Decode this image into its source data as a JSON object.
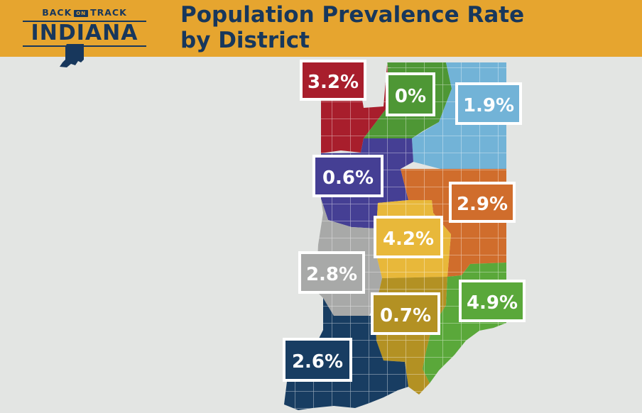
{
  "logo": {
    "word_left": "BACK",
    "word_mid": "ON",
    "word_right": "TRACK",
    "main": "INDIANA"
  },
  "title": {
    "line1": "Population Prevalence Rate",
    "line2": "by District"
  },
  "colors": {
    "header": "#e6a52f",
    "title_text": "#17375c",
    "background": "#e3e5e3",
    "red": "#a81e2c",
    "green": "#4e9735",
    "lightblue": "#72b3d7",
    "purple": "#453f94",
    "orange": "#d06d2c",
    "yellow": "#e8b83a",
    "gray": "#a8a9a8",
    "gold": "#b39123",
    "lime": "#5aa83a",
    "navy": "#183d62"
  },
  "districts": [
    {
      "id": "d1",
      "value": "3.2%",
      "color": "red"
    },
    {
      "id": "d2",
      "value": "0%",
      "color": "green"
    },
    {
      "id": "d3",
      "value": "1.9%",
      "color": "lightblue"
    },
    {
      "id": "d4",
      "value": "0.6%",
      "color": "purple"
    },
    {
      "id": "d5",
      "value": "2.9%",
      "color": "orange"
    },
    {
      "id": "d6",
      "value": "4.2%",
      "color": "yellow"
    },
    {
      "id": "d7",
      "value": "2.8%",
      "color": "gray"
    },
    {
      "id": "d8",
      "value": "0.7%",
      "color": "gold"
    },
    {
      "id": "d9",
      "value": "4.9%",
      "color": "lime"
    },
    {
      "id": "d10",
      "value": "2.6%",
      "color": "navy"
    }
  ]
}
